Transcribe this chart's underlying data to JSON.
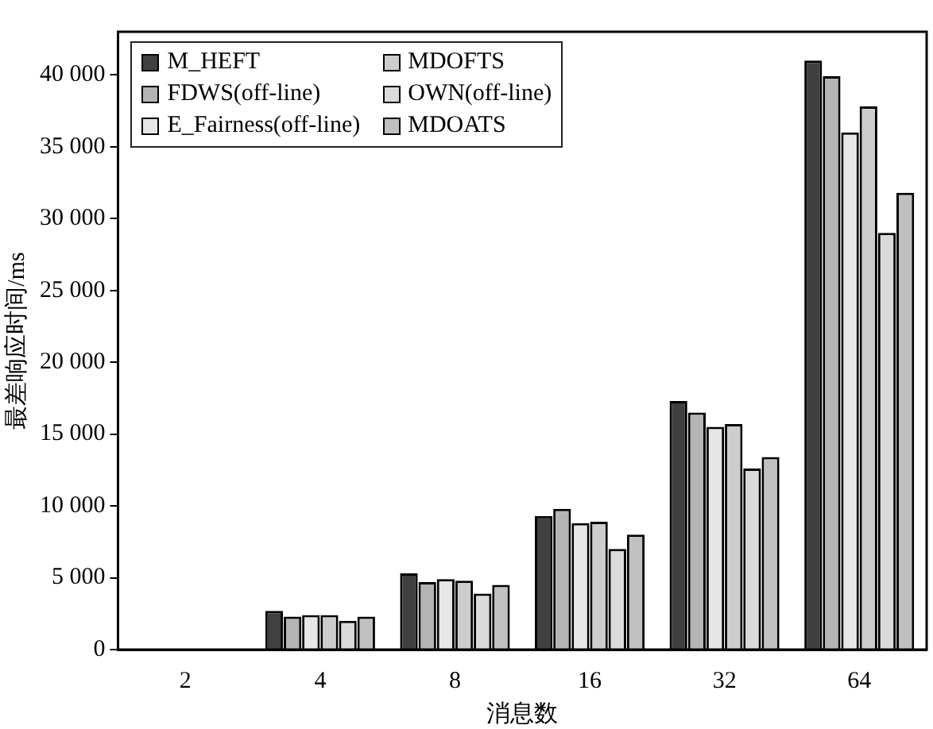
{
  "chart_data": {
    "type": "bar",
    "xlabel": "消息数",
    "ylabel": "最差响应时间/ms",
    "categories": [
      "2",
      "4",
      "8",
      "16",
      "32",
      "64"
    ],
    "series": [
      {
        "name": "M_HEFT",
        "color": "#404040",
        "values": [
          0,
          2700,
          5300,
          9300,
          17300,
          41000
        ]
      },
      {
        "name": "FDWS(off-line)",
        "color": "#b4b4b4",
        "values": [
          0,
          2300,
          4700,
          9800,
          16500,
          39900
        ]
      },
      {
        "name": "E_Fairness(off-line)",
        "color": "#e6e6e6",
        "values": [
          0,
          2400,
          4900,
          8800,
          15500,
          36000
        ]
      },
      {
        "name": "MDOFTS",
        "color": "#cdcdcd",
        "values": [
          0,
          2400,
          4800,
          8900,
          15700,
          37800
        ]
      },
      {
        "name": "OWN(off-line)",
        "color": "#dadada",
        "values": [
          0,
          2000,
          3900,
          7000,
          12600,
          29000
        ]
      },
      {
        "name": "MDOATS",
        "color": "#c0c0c0",
        "values": [
          0,
          2300,
          4500,
          8000,
          13400,
          31800
        ]
      }
    ],
    "ylim": [
      0,
      43000
    ],
    "yticks": [
      {
        "value": 0,
        "label": "0"
      },
      {
        "value": 5000,
        "label": "5 000"
      },
      {
        "value": 10000,
        "label": "10 000"
      },
      {
        "value": 15000,
        "label": "15 000"
      },
      {
        "value": 20000,
        "label": "20 000"
      },
      {
        "value": 25000,
        "label": "25 000"
      },
      {
        "value": 30000,
        "label": "30 000"
      },
      {
        "value": 35000,
        "label": "35 000"
      },
      {
        "value": 40000,
        "label": "40 000"
      }
    ],
    "grid": false,
    "legend": "top left"
  }
}
